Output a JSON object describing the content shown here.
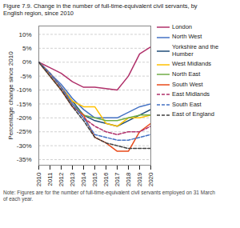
{
  "chart_data": {
    "type": "line",
    "title": "Figure 7.9. Change in the number of full-time-equivalent civil servants, by\nEnglish region, since 2010",
    "note": "Note: Figures are for the number of full-time-equivalent civil servants employed on 31 March\nof each year.",
    "ylabel": "Percentage change since 2010",
    "x": [
      2010,
      2011,
      2012,
      2013,
      2014,
      2015,
      2016,
      2017,
      2018,
      2019,
      2020
    ],
    "xlim": [
      2010,
      2020
    ],
    "xticks": [
      2010,
      2011,
      2012,
      2013,
      2014,
      2015,
      2016,
      2017,
      2018,
      2019,
      2020
    ],
    "ylim": [
      -37,
      13
    ],
    "yticks": [
      {
        "value": -35,
        "label": "-35%"
      },
      {
        "value": -30,
        "label": "-30%"
      },
      {
        "value": -25,
        "label": "-25%"
      },
      {
        "value": -20,
        "label": "-20%"
      },
      {
        "value": -15,
        "label": "-15%"
      },
      {
        "value": -10,
        "label": "-10%"
      },
      {
        "value": -5,
        "label": "-5%"
      },
      {
        "value": 0,
        "label": "0%"
      },
      {
        "value": 5,
        "label": "5%"
      },
      {
        "value": 10,
        "label": "10%"
      }
    ],
    "grid": "y",
    "legend": "right",
    "series": [
      {
        "name": "London",
        "color": "#b0306a",
        "line_style": "solid",
        "values": [
          0,
          -2,
          -4,
          -7,
          -9,
          -9,
          -9.5,
          -10,
          -5,
          3,
          5.5
        ]
      },
      {
        "name": "North West",
        "color": "#4472c4",
        "line_style": "solid",
        "values": [
          0,
          -4,
          -8,
          -13,
          -17,
          -20,
          -20,
          -20,
          -18,
          -16,
          -15
        ]
      },
      {
        "name": "Yorkshire and the Humber",
        "color": "#1f4e79",
        "line_style": "solid",
        "values": [
          0,
          -4,
          -9,
          -14,
          -19,
          -21,
          -22,
          -23,
          -21,
          -19,
          -17
        ]
      },
      {
        "name": "West Midlands",
        "color": "#ffc000",
        "line_style": "solid",
        "values": [
          0,
          -4,
          -9,
          -14,
          -16,
          -16,
          -22,
          -23,
          -20,
          -20,
          -19
        ]
      },
      {
        "name": "North East",
        "color": "#70ad47",
        "line_style": "solid",
        "values": [
          0,
          -5,
          -10,
          -15,
          -19,
          -20,
          -21,
          -21,
          -20,
          -19,
          -19
        ]
      },
      {
        "name": "South West",
        "color": "#e84a1a",
        "line_style": "solid",
        "values": [
          0,
          -5,
          -10,
          -16,
          -19,
          -27,
          -29,
          -32,
          -32,
          -25,
          -22
        ]
      },
      {
        "name": "East Midlands",
        "color": "#b0306a",
        "line_style": "dashed",
        "values": [
          0,
          -4,
          -9,
          -15,
          -20,
          -23,
          -25,
          -26,
          -25,
          -25,
          -23
        ]
      },
      {
        "name": "South East",
        "color": "#4472c4",
        "line_style": "dashed",
        "values": [
          0,
          -4,
          -9,
          -15,
          -20,
          -26,
          -27,
          -28,
          -28,
          -27,
          -26
        ]
      },
      {
        "name": "East of England",
        "color": "#404040",
        "line_style": "dashed",
        "values": [
          0,
          -5,
          -10,
          -16,
          -21,
          -27,
          -29,
          -30,
          -31,
          -31,
          -31
        ]
      }
    ]
  }
}
